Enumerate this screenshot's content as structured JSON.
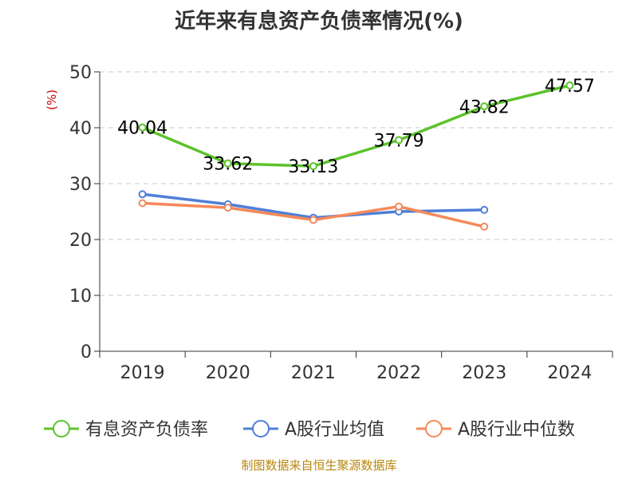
{
  "chart_data": {
    "type": "line",
    "title": "近年来有息资产负债率情况(%)",
    "ylabel": "(%)",
    "ylim": [
      0,
      50
    ],
    "yticks": [
      0,
      10,
      20,
      30,
      40,
      50
    ],
    "grid": true,
    "legend_position": "bottom",
    "categories": [
      "2019",
      "2020",
      "2021",
      "2022",
      "2023",
      "2024"
    ],
    "series": [
      {
        "name": "有息资产负债率",
        "color": "#5cc22a",
        "values": [
          40.04,
          33.62,
          33.13,
          37.79,
          43.82,
          47.57
        ],
        "show_labels": true
      },
      {
        "name": "A股行业均值",
        "color": "#4f7fd8",
        "values": [
          28.1,
          26.3,
          23.9,
          25.0,
          25.3,
          null
        ],
        "show_labels": false
      },
      {
        "name": "A股行业中位数",
        "color": "#f5895a",
        "values": [
          26.5,
          25.7,
          23.5,
          25.9,
          22.3,
          null
        ],
        "show_labels": false
      }
    ],
    "source": "制图数据来自恒生聚源数据库"
  }
}
